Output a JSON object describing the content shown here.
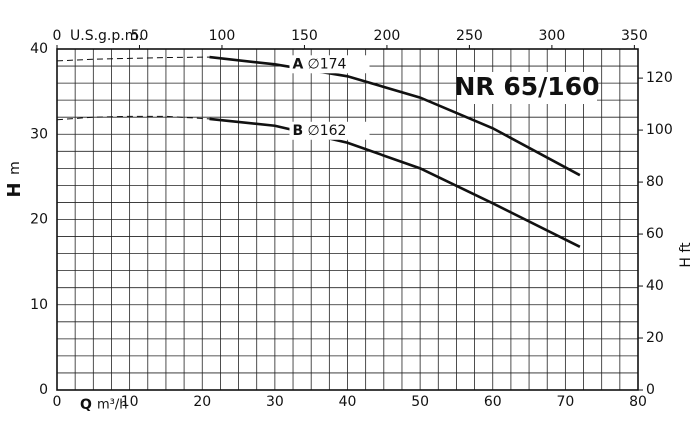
{
  "chart_data": {
    "type": "line",
    "title": "NR 65/160",
    "x_label": "Q",
    "x_unit": "m³/h",
    "y_label": "H",
    "y_unit": "m",
    "x2_label": "U.S.g.p.m.",
    "y2_label": "H ft",
    "xlim": [
      0,
      80
    ],
    "xticks": [
      0,
      10,
      20,
      30,
      40,
      50,
      60,
      70,
      80
    ],
    "ylim": [
      0,
      40
    ],
    "yticks": [
      0,
      10,
      20,
      30,
      40
    ],
    "x2lim": [
      0,
      352.2
    ],
    "x2ticks": [
      0,
      50,
      100,
      150,
      200,
      250,
      300,
      350
    ],
    "y2lim": [
      0,
      131.2
    ],
    "y2ticks": [
      0,
      20,
      40,
      60,
      80,
      100,
      120
    ],
    "grid": true,
    "series": [
      {
        "name": "A",
        "diameter": "∅174",
        "color": "#111",
        "dashed_x": [
          0,
          5,
          10,
          15,
          21
        ],
        "dashed_values": [
          38.6,
          38.8,
          38.9,
          39.0,
          39.05
        ],
        "x": [
          21,
          30,
          40,
          50,
          60,
          72
        ],
        "values": [
          39.05,
          38.2,
          36.8,
          34.3,
          30.7,
          25.2
        ]
      },
      {
        "name": "B",
        "diameter": "∅162",
        "color": "#111",
        "dashed_x": [
          0,
          5,
          10,
          15,
          21
        ],
        "dashed_values": [
          31.7,
          32.0,
          32.1,
          32.1,
          31.8
        ],
        "x": [
          21,
          30,
          40,
          50,
          60,
          72
        ],
        "values": [
          31.8,
          31.0,
          29.0,
          26.0,
          21.9,
          16.8
        ]
      }
    ]
  }
}
